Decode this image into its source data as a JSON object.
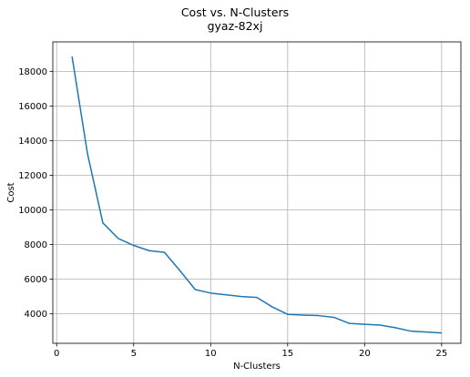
{
  "chart_data": {
    "type": "line",
    "title": "Cost vs. N-Clusters",
    "subtitle": "gyaz-82xj",
    "xlabel": "N-Clusters",
    "ylabel": "Cost",
    "xlim": [
      -0.25,
      26.25
    ],
    "ylim": [
      2300,
      19700
    ],
    "xticks": [
      0,
      5,
      10,
      15,
      20,
      25
    ],
    "yticks": [
      4000,
      6000,
      8000,
      10000,
      12000,
      14000,
      16000,
      18000
    ],
    "grid": true,
    "series": [
      {
        "color": "#1f77b4",
        "x": [
          1,
          2,
          3,
          4,
          5,
          6,
          7,
          8,
          9,
          10,
          11,
          12,
          13,
          14,
          15,
          16,
          17,
          18,
          19,
          20,
          21,
          22,
          23,
          24,
          25
        ],
        "values": [
          18850,
          13250,
          9250,
          8350,
          7950,
          7650,
          7550,
          6500,
          5400,
          5200,
          5100,
          5000,
          4950,
          4400,
          3970,
          3930,
          3900,
          3800,
          3450,
          3400,
          3350,
          3200,
          3000,
          2950,
          2900
        ]
      }
    ]
  }
}
